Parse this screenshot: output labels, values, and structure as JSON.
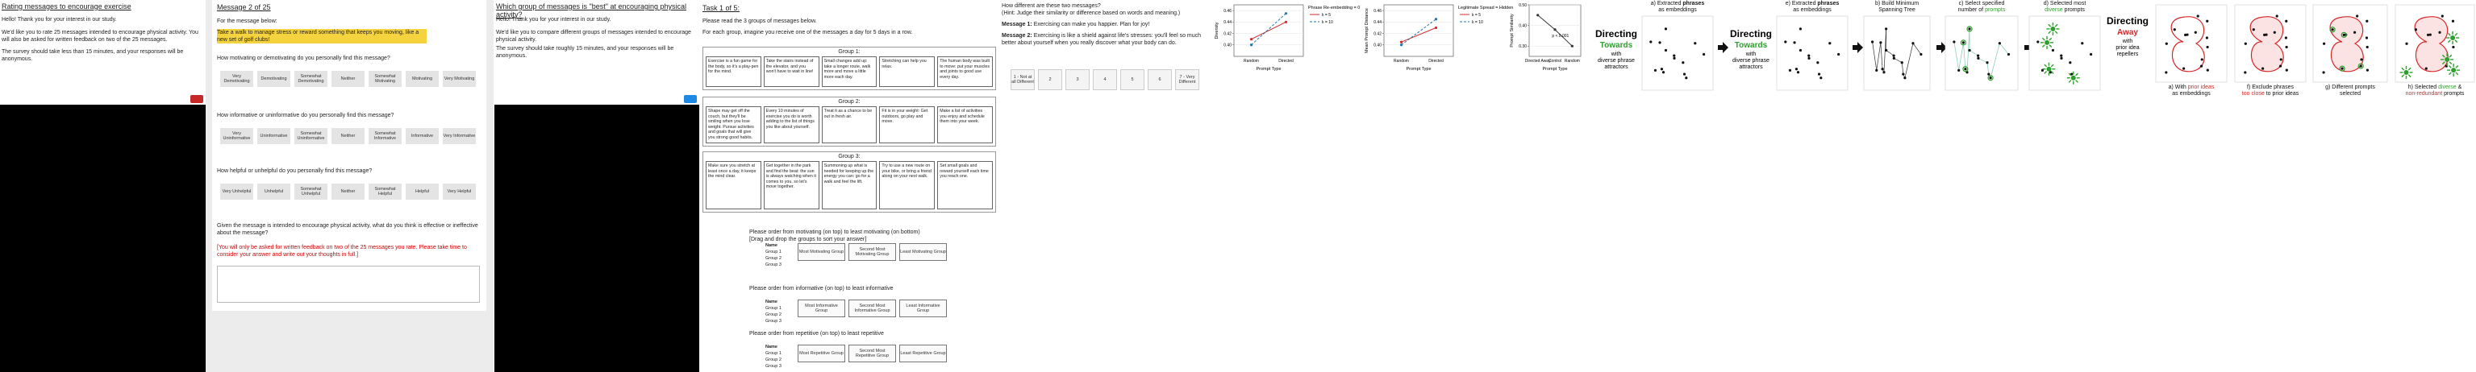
{
  "panel_a": {
    "title": "Rating messages to encourage exercise",
    "paragraphs": [
      "Hello! Thank you for your interest in our study.",
      "We'd like you to rate 25 messages intended to encourage physical activity. You will also be asked for written feedback on two of the 25 messages.",
      "The survey should take less than 15 minutes, and your responses will be anonymous."
    ]
  },
  "panel_b": {
    "heading": "Message 2 of 25",
    "intro": "For the message below:",
    "message": "Take a walk to manage stress or reward something that keeps you moving, like a new set of golf clubs!",
    "questions": [
      {
        "prompt": "How motivating or demotivating do you personally find this message?",
        "options": [
          "Very Demotivating",
          "Demotivating",
          "Somewhat Demotivating",
          "Neither",
          "Somewhat Motivating",
          "Motivating",
          "Very Motivating"
        ]
      },
      {
        "prompt": "How informative or uninformative do you personally find this message?",
        "options": [
          "Very Uninformative",
          "Uninformative",
          "Somewhat Uninformative",
          "Neither",
          "Somewhat Informative",
          "Informative",
          "Very Informative"
        ]
      },
      {
        "prompt": "How helpful or unhelpful do you personally find this message?",
        "options": [
          "Very Unhelpful",
          "Unhelpful",
          "Somewhat Unhelpful",
          "Neither",
          "Somewhat Helpful",
          "Helpful",
          "Very Helpful"
        ]
      }
    ],
    "free_prompt": "Given the message is intended to encourage physical activity, what do you think is effective or ineffective about the message?",
    "free_note": "[You will only be asked for written feedback on two of the 25 messages you rate. Please take time to consider your answer and write out your thoughts in full.]"
  },
  "panel_c": {
    "title": "Which group of messages is \"best\" at encouraging physical activity?",
    "paragraphs": [
      "Hello! Thank you for your interest in our study.",
      "We'd like you to compare different groups of messages intended to encourage physical activity.",
      "The survey should take roughly 15 minutes, and your responses will be anonymous."
    ]
  },
  "panel_d": {
    "title": "Task 1 of 5:",
    "paragraphs": [
      "Please read the 3 groups of messages below.",
      "For each group, imagine you receive one of the messages a day for 5 days in a row."
    ],
    "groups": [
      {
        "label": "Group 1:",
        "messages": [
          "Exercise is a fun game for the body, so it's a play-pen for the mind.",
          "Take the stairs instead of the elevator, and you won't have to wait in line!",
          "Small changes add up: take a longer route, walk more and move a little more each day.",
          "Stretching can help you relax.",
          "The human body was built to move: put your muscles and joints to good use every day."
        ]
      },
      {
        "label": "Group 2:",
        "messages": [
          "Shape may get off the couch, but they'll be smiling when you lose weight. Pursue activities and goals that will give you strong good habits.",
          "Every 10 minutes of exercise you do is worth adding to the list of things you like about yourself.",
          "Treat it as a chance to be out in fresh air.",
          "Fit is in your weight: Get outdoors, go play and move.",
          "Make a list of activities you enjoy and schedule them into your week."
        ]
      },
      {
        "label": "Group 3:",
        "messages": [
          "Make sure you stretch at least once a day, it keeps the mind clear.",
          "Get together in the park and find the beat: the sun is always watching when it comes to you, so let's move together.",
          "Summoning up what is needed for keeping up the energy you can: go for a walk and feel the lift.",
          "Try to use a new route on your bike, or bring a friend along on your next walk.",
          "Set small goals and reward yourself each time you reach one."
        ]
      }
    ],
    "rankings": [
      {
        "prompt": "Please order from motivating (on top) to least motivating (on bottom)",
        "note": "[Drag and drop the groups to sort your answer]",
        "header": "Name",
        "items": [
          "Group 1",
          "Group 2",
          "Group 3"
        ],
        "slots": [
          "Most Motivating Group",
          "Second Most Motivating Group",
          "Least Motivating Group"
        ]
      },
      {
        "prompt": "Please order from informative (on top) to least informative",
        "note": "",
        "header": "Name",
        "items": [
          "Group 1",
          "Group 2",
          "Group 3"
        ],
        "slots": [
          "Most Informative Group",
          "Second Most Informative Group",
          "Least Informative Group"
        ]
      },
      {
        "prompt": "Please order from repetitive (on top) to least repetitive",
        "note": "",
        "header": "Name",
        "items": [
          "Group 1",
          "Group 2",
          "Group 3"
        ],
        "slots": [
          "Most Repetitive Group",
          "Second Most Repetitive Group",
          "Least Repetitive Group"
        ]
      }
    ]
  },
  "panel_e": {
    "question": "How different are these two messages?",
    "hint": "(Hint: Judge their similarity or difference based on words and meaning.)",
    "messages": [
      {
        "label": "Message 1:",
        "text": "Exercising can make you happier. Plan for joy!"
      },
      {
        "label": "Message 2:",
        "text": "Exercising is like a shield against life's stresses: you'll feel so much better about yourself when you really discover what your body can do."
      }
    ],
    "options": [
      "1 - Not at all Different",
      "2",
      "3",
      "4",
      "5",
      "6",
      "7 - Very Different"
    ]
  },
  "chart_data": [
    {
      "type": "line",
      "legend_title": "Phrase Re-embedding = 0",
      "xlabel": "Prompt Type",
      "ylabel": "Diversity",
      "categories": [
        "Random",
        "Directed"
      ],
      "series": [
        {
          "name": "k = 5",
          "color": "#d62728",
          "values": [
            0.41,
            0.44
          ]
        },
        {
          "name": "k = 10",
          "color": "#1f77b4",
          "values": [
            0.4,
            0.455
          ]
        }
      ],
      "ylim": [
        0.38,
        0.47
      ],
      "yticks": [
        {
          "value": 0.4,
          "label": "0.40"
        },
        {
          "value": 0.42,
          "label": "0.42"
        },
        {
          "value": 0.44,
          "label": "0.44"
        },
        {
          "value": 0.46,
          "label": "0.46"
        }
      ],
      "grid": true,
      "legend": "right"
    },
    {
      "type": "line",
      "legend_title": "Legitimate Spread = Hidden",
      "xlabel": "Prompt Type",
      "ylabel": "Mean Prompt Distance",
      "categories": [
        "Random",
        "Directed"
      ],
      "series": [
        {
          "name": "k = 5",
          "color": "#d62728",
          "values": [
            0.405,
            0.43
          ]
        },
        {
          "name": "k = 10",
          "color": "#1f77b4",
          "values": [
            0.4,
            0.445
          ]
        }
      ],
      "ylim": [
        0.38,
        0.47
      ],
      "yticks": [
        {
          "value": 0.4,
          "label": "0.40"
        },
        {
          "value": 0.42,
          "label": "0.42"
        },
        {
          "value": 0.44,
          "label": "0.44"
        },
        {
          "value": 0.46,
          "label": "0.46"
        }
      ],
      "grid": true,
      "legend": "right"
    },
    {
      "type": "line",
      "xlabel": "Prompt Type",
      "ylabel": "Prompt Similarity",
      "categories": [
        "Directed Away",
        "Control",
        "Random"
      ],
      "series": [
        {
          "color": "#333333",
          "values": [
            0.45,
            0.38,
            0.3
          ]
        }
      ],
      "annotation": "p < 0.001",
      "ylim": [
        0.25,
        0.5
      ],
      "yticks": [
        {
          "value": 0.3,
          "label": "0.30"
        },
        {
          "value": 0.4,
          "label": "0.40"
        },
        {
          "value": 0.5,
          "label": "0.50"
        }
      ],
      "grid": true
    }
  ],
  "diagram": {
    "blocks": [
      {
        "title": "Directing",
        "emph": "Towards",
        "emph_color": "#2ca02c",
        "lines": [
          "with",
          "diverse phrase",
          "attractors"
        ]
      },
      {
        "title": "Directing",
        "emph": "Towards",
        "emph_color": "#2ca02c",
        "lines": [
          "with",
          "diverse phrase",
          "attractors"
        ]
      },
      {
        "title": "Directing",
        "emph": "Away",
        "emph_color": "#d62728",
        "lines": [
          "with",
          "prior idea",
          "repellers"
        ]
      }
    ],
    "panels": [
      {
        "kind": "dots",
        "caption": [
          [
            {
              "text": "a) Extracted "
            },
            {
              "text": "phrases",
              "weight": "bold"
            }
          ],
          [
            {
              "text": "as embeddings"
            }
          ]
        ]
      },
      {
        "kind": "dots",
        "caption": [
          [
            {
              "text": "e) Extracted "
            },
            {
              "text": "phrases",
              "weight": "bold"
            }
          ],
          [
            {
              "text": "as embeddings"
            }
          ]
        ]
      },
      {
        "kind": "mst",
        "caption": [
          [
            {
              "text": "b) Build Minimum"
            }
          ],
          [
            {
              "text": "Spanning Tree"
            }
          ]
        ]
      },
      {
        "kind": "select",
        "caption": [
          [
            {
              "text": "c) Select specified"
            }
          ],
          [
            {
              "text": "number of "
            },
            {
              "text": "prompts",
              "color": "#2ca02c"
            }
          ]
        ]
      },
      {
        "kind": "selected",
        "caption": [
          [
            {
              "text": "d) Selected most"
            }
          ],
          [
            {
              "text": "diverse",
              "color": "#2ca02c"
            },
            {
              "text": " prompts"
            }
          ]
        ]
      },
      {
        "kind": "prior",
        "caption": [
          [
            {
              "text": "a) With "
            },
            {
              "text": "prior ideas",
              "color": "#d62728"
            }
          ],
          [
            {
              "text": "as embeddings"
            }
          ]
        ]
      },
      {
        "kind": "exclude",
        "caption": [
          [
            {
              "text": "f) Exclude phrases"
            }
          ],
          [
            {
              "text": "too close",
              "color": "#d62728"
            },
            {
              "text": " to prior ideas"
            }
          ]
        ]
      },
      {
        "kind": "different",
        "caption": [
          [
            {
              "text": "g) Different prompts"
            }
          ],
          [
            {
              "text": "selected"
            }
          ]
        ]
      },
      {
        "kind": "final",
        "caption": [
          [
            {
              "text": "h) Selected "
            },
            {
              "text": "diverse",
              "color": "#2ca02c"
            },
            {
              "text": " &"
            }
          ],
          [
            {
              "text": "non-redundant",
              "color": "#d62728"
            },
            {
              "text": " prompts"
            }
          ]
        ]
      }
    ]
  }
}
